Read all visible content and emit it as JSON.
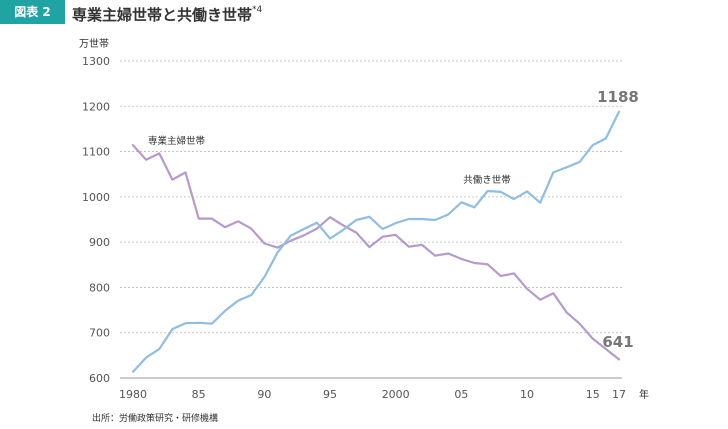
{
  "header": {
    "badge": "図表 2",
    "title": "専業主婦世帯と共働き世帯",
    "footnote_mark": "*4"
  },
  "source": "出所：労働政策研究・研修機構",
  "colors": {
    "accent": "#1fa3a3",
    "dual_income": "#8fbde3",
    "housewife": "#b79acd",
    "grid": "#bbbbbb"
  },
  "chart_data": {
    "type": "line",
    "ylabel": "万世帯",
    "xlabel": "年",
    "ylim": [
      600,
      1300
    ],
    "yticks": [
      600,
      700,
      800,
      900,
      1000,
      1100,
      1200,
      1300
    ],
    "xticks": [
      {
        "x": 1980,
        "label": "1980"
      },
      {
        "x": 1985,
        "label": "85"
      },
      {
        "x": 1990,
        "label": "90"
      },
      {
        "x": 1995,
        "label": "95"
      },
      {
        "x": 2000,
        "label": "2000"
      },
      {
        "x": 2005,
        "label": "05"
      },
      {
        "x": 2010,
        "label": "10"
      },
      {
        "x": 2015,
        "label": "15"
      },
      {
        "x": 2017,
        "label": "17"
      }
    ],
    "xlim": [
      1980,
      2017
    ],
    "grid": true,
    "series": [
      {
        "name": "専業主婦世帯",
        "color": "#b79acd",
        "end_label": "641",
        "points": [
          [
            1980,
            1114
          ],
          [
            1981,
            1082
          ],
          [
            1982,
            1096
          ],
          [
            1983,
            1038
          ],
          [
            1984,
            1054
          ],
          [
            1985,
            952
          ],
          [
            1986,
            952
          ],
          [
            1987,
            933
          ],
          [
            1988,
            946
          ],
          [
            1989,
            930
          ],
          [
            1990,
            897
          ],
          [
            1991,
            888
          ],
          [
            1992,
            903
          ],
          [
            1993,
            915
          ],
          [
            1994,
            930
          ],
          [
            1995,
            955
          ],
          [
            1996,
            937
          ],
          [
            1997,
            921
          ],
          [
            1998,
            889
          ],
          [
            1999,
            912
          ],
          [
            2000,
            916
          ],
          [
            2001,
            890
          ],
          [
            2002,
            894
          ],
          [
            2003,
            870
          ],
          [
            2004,
            875
          ],
          [
            2005,
            863
          ],
          [
            2006,
            854
          ],
          [
            2007,
            851
          ],
          [
            2008,
            825
          ],
          [
            2009,
            831
          ],
          [
            2010,
            797
          ],
          [
            2011,
            773
          ],
          [
            2012,
            787
          ],
          [
            2013,
            745
          ],
          [
            2014,
            720
          ],
          [
            2015,
            687
          ],
          [
            2016,
            664
          ],
          [
            2017,
            641
          ]
        ]
      },
      {
        "name": "共働き世帯",
        "color": "#8fbde3",
        "end_label": "1188",
        "points": [
          [
            1980,
            614
          ],
          [
            1981,
            645
          ],
          [
            1982,
            664
          ],
          [
            1983,
            708
          ],
          [
            1984,
            721
          ],
          [
            1985,
            722
          ],
          [
            1986,
            720
          ],
          [
            1987,
            748
          ],
          [
            1988,
            771
          ],
          [
            1989,
            783
          ],
          [
            1990,
            823
          ],
          [
            1991,
            877
          ],
          [
            1992,
            914
          ],
          [
            1993,
            929
          ],
          [
            1994,
            943
          ],
          [
            1995,
            908
          ],
          [
            1996,
            927
          ],
          [
            1997,
            949
          ],
          [
            1998,
            956
          ],
          [
            1999,
            929
          ],
          [
            2000,
            942
          ],
          [
            2001,
            951
          ],
          [
            2002,
            951
          ],
          [
            2003,
            949
          ],
          [
            2004,
            961
          ],
          [
            2005,
            988
          ],
          [
            2006,
            977
          ],
          [
            2007,
            1013
          ],
          [
            2008,
            1011
          ],
          [
            2009,
            995
          ],
          [
            2010,
            1012
          ],
          [
            2011,
            987
          ],
          [
            2012,
            1054
          ],
          [
            2013,
            1065
          ],
          [
            2014,
            1077
          ],
          [
            2015,
            1114
          ],
          [
            2016,
            1129
          ],
          [
            2017,
            1188
          ]
        ]
      }
    ]
  }
}
